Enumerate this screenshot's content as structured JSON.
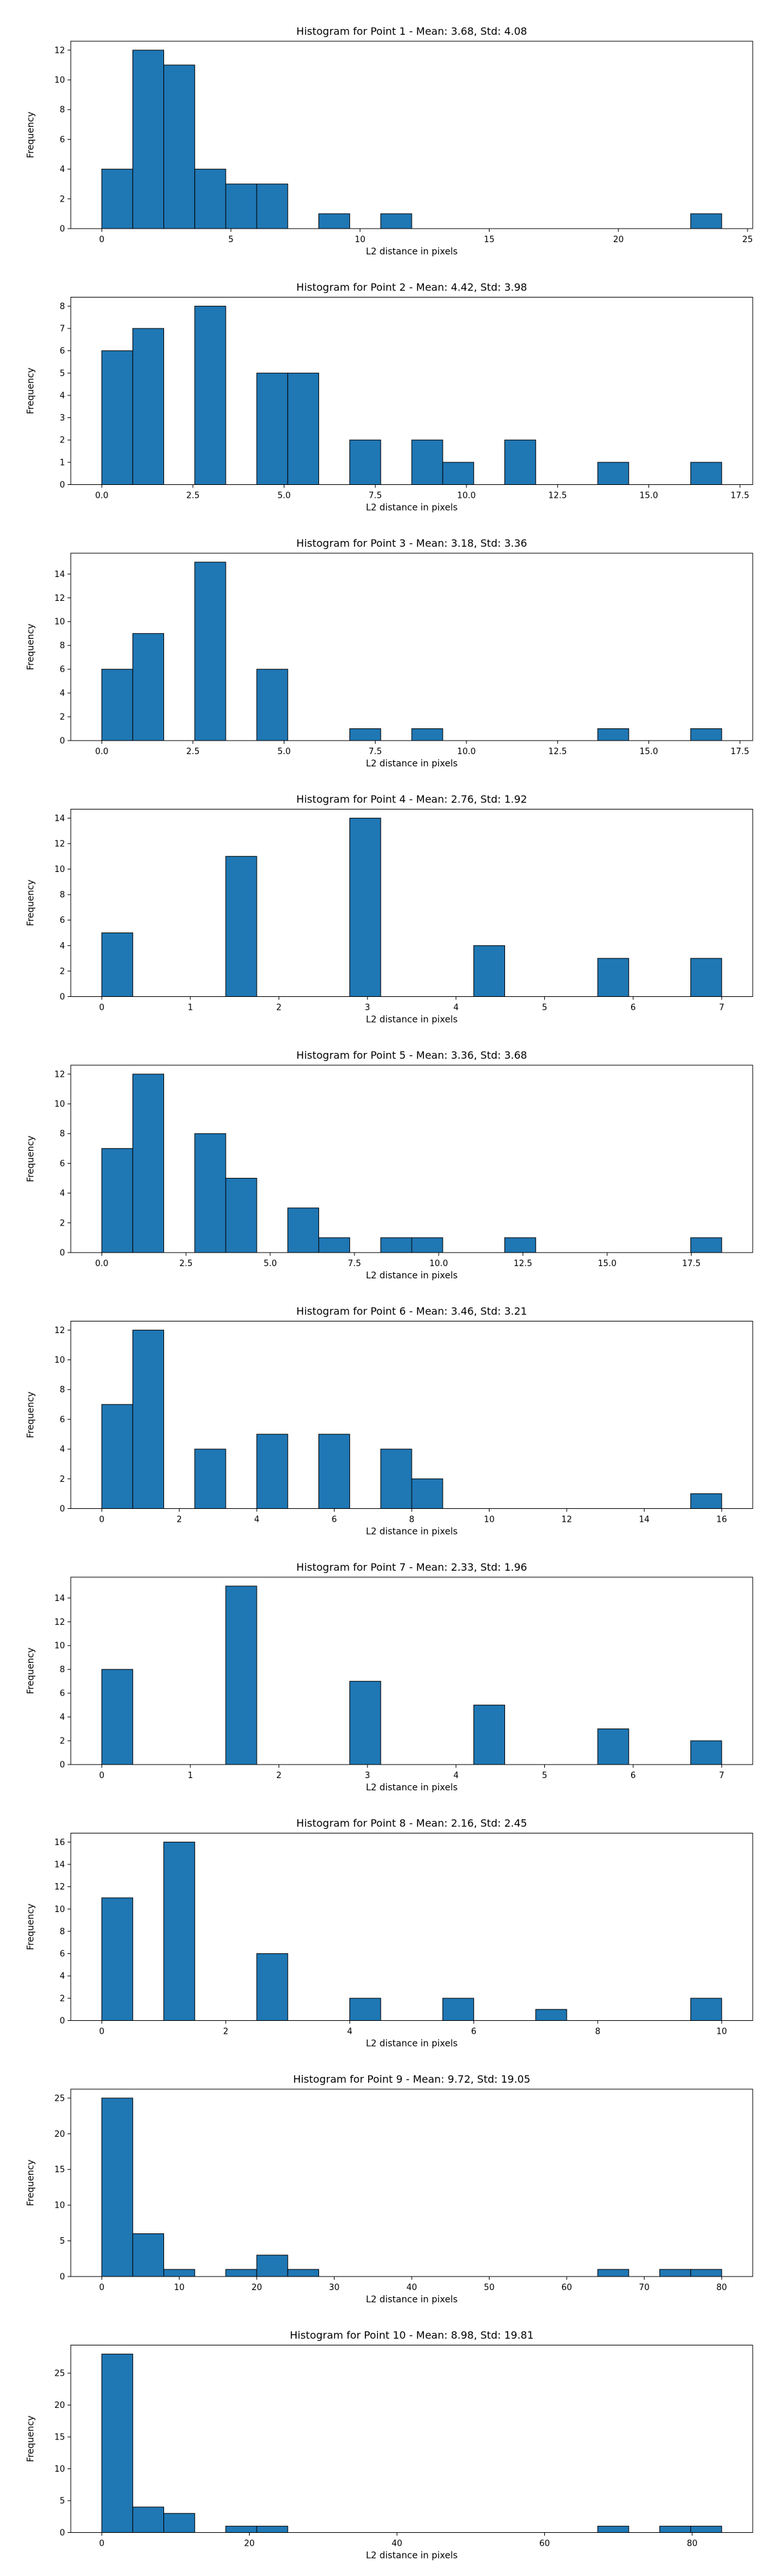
{
  "chart_data": [
    {
      "type": "bar",
      "title": "Histogram for Point 1 - Mean: 3.68, Std: 4.08",
      "xlabel": "L2 distance in pixels",
      "ylabel": "Frequency",
      "xlim": [
        -1.2,
        25.2
      ],
      "ylim": [
        0,
        12.6
      ],
      "xticks": [
        0,
        5,
        10,
        15,
        20,
        25
      ],
      "xtick_labels": [
        "0",
        "5",
        "10",
        "15",
        "20",
        "25"
      ],
      "yticks": [
        0,
        2,
        4,
        6,
        8,
        10,
        12
      ],
      "bins": [
        [
          0,
          1.2,
          4
        ],
        [
          1.2,
          2.4,
          12
        ],
        [
          2.4,
          3.6,
          11
        ],
        [
          3.6,
          4.8,
          4
        ],
        [
          4.8,
          6.0,
          3
        ],
        [
          6.0,
          7.2,
          3
        ],
        [
          8.4,
          9.6,
          1
        ],
        [
          10.8,
          12.0,
          1
        ],
        [
          22.8,
          24.0,
          1
        ]
      ]
    },
    {
      "type": "bar",
      "title": "Histogram for Point 2 - Mean: 4.42, Std: 3.98",
      "xlabel": "L2 distance in pixels",
      "ylabel": "Frequency",
      "xlim": [
        -0.85,
        17.85
      ],
      "ylim": [
        0,
        8.4
      ],
      "xticks": [
        0,
        2.5,
        5,
        7.5,
        10,
        12.5,
        15,
        17.5
      ],
      "xtick_labels": [
        "0.0",
        "2.5",
        "5.0",
        "7.5",
        "10.0",
        "12.5",
        "15.0",
        "17.5"
      ],
      "yticks": [
        0,
        1,
        2,
        3,
        4,
        5,
        6,
        7,
        8
      ],
      "bins": [
        [
          0,
          0.85,
          6
        ],
        [
          0.85,
          1.7,
          7
        ],
        [
          2.55,
          3.4,
          8
        ],
        [
          4.25,
          5.1,
          5
        ],
        [
          5.1,
          5.95,
          5
        ],
        [
          6.8,
          7.65,
          2
        ],
        [
          8.5,
          9.35,
          2
        ],
        [
          9.35,
          10.2,
          1
        ],
        [
          11.05,
          11.9,
          2
        ],
        [
          13.6,
          14.45,
          1
        ],
        [
          16.15,
          17.0,
          1
        ]
      ]
    },
    {
      "type": "bar",
      "title": "Histogram for Point 3 - Mean: 3.18, Std: 3.36",
      "xlabel": "L2 distance in pixels",
      "ylabel": "Frequency",
      "xlim": [
        -0.85,
        17.85
      ],
      "ylim": [
        0,
        15.75
      ],
      "xticks": [
        0,
        2.5,
        5,
        7.5,
        10,
        12.5,
        15,
        17.5
      ],
      "xtick_labels": [
        "0.0",
        "2.5",
        "5.0",
        "7.5",
        "10.0",
        "12.5",
        "15.0",
        "17.5"
      ],
      "yticks": [
        0,
        2,
        4,
        6,
        8,
        10,
        12,
        14
      ],
      "bins": [
        [
          0,
          0.85,
          6
        ],
        [
          0.85,
          1.7,
          9
        ],
        [
          2.55,
          3.4,
          15
        ],
        [
          4.25,
          5.1,
          6
        ],
        [
          6.8,
          7.65,
          1
        ],
        [
          8.5,
          9.35,
          1
        ],
        [
          13.6,
          14.45,
          1
        ],
        [
          16.15,
          17.0,
          1
        ]
      ]
    },
    {
      "type": "bar",
      "title": "Histogram for Point 4 - Mean: 2.76, Std: 1.92",
      "xlabel": "L2 distance in pixels",
      "ylabel": "Frequency",
      "xlim": [
        -0.35,
        7.35
      ],
      "ylim": [
        0,
        14.7
      ],
      "xticks": [
        0,
        1,
        2,
        3,
        4,
        5,
        6,
        7
      ],
      "xtick_labels": [
        "0",
        "1",
        "2",
        "3",
        "4",
        "5",
        "6",
        "7"
      ],
      "yticks": [
        0,
        2,
        4,
        6,
        8,
        10,
        12,
        14
      ],
      "bins": [
        [
          0,
          0.35,
          5
        ],
        [
          1.4,
          1.75,
          11
        ],
        [
          2.8,
          3.15,
          14
        ],
        [
          4.2,
          4.55,
          4
        ],
        [
          5.6,
          5.95,
          3
        ],
        [
          6.65,
          7.0,
          3
        ]
      ]
    },
    {
      "type": "bar",
      "title": "Histogram for Point 5 - Mean: 3.36, Std: 3.68",
      "xlabel": "L2 distance in pixels",
      "ylabel": "Frequency",
      "xlim": [
        -0.92,
        19.32
      ],
      "ylim": [
        0,
        12.6
      ],
      "xticks": [
        0,
        2.5,
        5,
        7.5,
        10,
        12.5,
        15,
        17.5
      ],
      "xtick_labels": [
        "0.0",
        "2.5",
        "5.0",
        "7.5",
        "10.0",
        "12.5",
        "15.0",
        "17.5"
      ],
      "yticks": [
        0,
        2,
        4,
        6,
        8,
        10,
        12
      ],
      "bins": [
        [
          0,
          0.92,
          7
        ],
        [
          0.92,
          1.84,
          12
        ],
        [
          2.76,
          3.68,
          8
        ],
        [
          3.68,
          4.6,
          5
        ],
        [
          5.52,
          6.44,
          3
        ],
        [
          6.44,
          7.36,
          1
        ],
        [
          8.28,
          9.2,
          1
        ],
        [
          9.2,
          10.12,
          1
        ],
        [
          11.96,
          12.88,
          1
        ],
        [
          17.48,
          18.4,
          1
        ]
      ]
    },
    {
      "type": "bar",
      "title": "Histogram for Point 6 - Mean: 3.46, Std: 3.21",
      "xlabel": "L2 distance in pixels",
      "ylabel": "Frequency",
      "xlim": [
        -0.8,
        16.8
      ],
      "ylim": [
        0,
        12.6
      ],
      "xticks": [
        0,
        2,
        4,
        6,
        8,
        10,
        12,
        14,
        16
      ],
      "xtick_labels": [
        "0",
        "2",
        "4",
        "6",
        "8",
        "10",
        "12",
        "14",
        "16"
      ],
      "yticks": [
        0,
        2,
        4,
        6,
        8,
        10,
        12
      ],
      "bins": [
        [
          0,
          0.8,
          7
        ],
        [
          0.8,
          1.6,
          12
        ],
        [
          2.4,
          3.2,
          4
        ],
        [
          4.0,
          4.8,
          5
        ],
        [
          5.6,
          6.4,
          5
        ],
        [
          7.2,
          8.0,
          4
        ],
        [
          8.0,
          8.8,
          2
        ],
        [
          15.2,
          16.0,
          1
        ]
      ]
    },
    {
      "type": "bar",
      "title": "Histogram for Point 7 - Mean: 2.33, Std: 1.96",
      "xlabel": "L2 distance in pixels",
      "ylabel": "Frequency",
      "xlim": [
        -0.35,
        7.35
      ],
      "ylim": [
        0,
        15.75
      ],
      "xticks": [
        0,
        1,
        2,
        3,
        4,
        5,
        6,
        7
      ],
      "xtick_labels": [
        "0",
        "1",
        "2",
        "3",
        "4",
        "5",
        "6",
        "7"
      ],
      "yticks": [
        0,
        2,
        4,
        6,
        8,
        10,
        12,
        14
      ],
      "bins": [
        [
          0,
          0.35,
          8
        ],
        [
          1.4,
          1.75,
          15
        ],
        [
          2.8,
          3.15,
          7
        ],
        [
          4.2,
          4.55,
          5
        ],
        [
          5.6,
          5.95,
          3
        ],
        [
          6.65,
          7.0,
          2
        ]
      ]
    },
    {
      "type": "bar",
      "title": "Histogram for Point 8 - Mean: 2.16, Std: 2.45",
      "xlabel": "L2 distance in pixels",
      "ylabel": "Frequency",
      "xlim": [
        -0.5,
        10.5
      ],
      "ylim": [
        0,
        16.8
      ],
      "xticks": [
        0,
        2,
        4,
        6,
        8,
        10
      ],
      "xtick_labels": [
        "0",
        "2",
        "4",
        "6",
        "8",
        "10"
      ],
      "yticks": [
        0,
        2,
        4,
        6,
        8,
        10,
        12,
        14,
        16
      ],
      "bins": [
        [
          0,
          0.5,
          11
        ],
        [
          1.0,
          1.5,
          16
        ],
        [
          2.5,
          3.0,
          6
        ],
        [
          4.0,
          4.5,
          2
        ],
        [
          5.5,
          6.0,
          2
        ],
        [
          7.0,
          7.5,
          1
        ],
        [
          9.5,
          10.0,
          2
        ]
      ]
    },
    {
      "type": "bar",
      "title": "Histogram for Point 9 - Mean: 9.72, Std: 19.05",
      "xlabel": "L2 distance in pixels",
      "ylabel": "Frequency",
      "xlim": [
        -4.0,
        84.0
      ],
      "ylim": [
        0,
        26.25
      ],
      "xticks": [
        0,
        10,
        20,
        30,
        40,
        50,
        60,
        70,
        80
      ],
      "xtick_labels": [
        "0",
        "10",
        "20",
        "30",
        "40",
        "50",
        "60",
        "70",
        "80"
      ],
      "yticks": [
        0,
        5,
        10,
        15,
        20,
        25
      ],
      "bins": [
        [
          0,
          4,
          25
        ],
        [
          4,
          8,
          6
        ],
        [
          8,
          12,
          1
        ],
        [
          16,
          20,
          1
        ],
        [
          20,
          24,
          3
        ],
        [
          24,
          28,
          1
        ],
        [
          64,
          68,
          1
        ],
        [
          72,
          76,
          1
        ],
        [
          76,
          80,
          1
        ]
      ]
    },
    {
      "type": "bar",
      "title": "Histogram for Point 10 - Mean: 8.98, Std: 19.81",
      "xlabel": "L2 distance in pixels",
      "ylabel": "Frequency",
      "xlim": [
        -4.2,
        88.2
      ],
      "ylim": [
        0,
        29.4
      ],
      "xticks": [
        0,
        20,
        40,
        60,
        80
      ],
      "xtick_labels": [
        "0",
        "20",
        "40",
        "60",
        "80"
      ],
      "yticks": [
        0,
        5,
        10,
        15,
        20,
        25
      ],
      "bins": [
        [
          0,
          4.2,
          28
        ],
        [
          4.2,
          8.4,
          4
        ],
        [
          8.4,
          12.6,
          3
        ],
        [
          16.8,
          21.0,
          1
        ],
        [
          21.0,
          25.2,
          1
        ],
        [
          67.2,
          71.4,
          1
        ],
        [
          75.6,
          79.8,
          1
        ],
        [
          79.8,
          84.0,
          1
        ]
      ]
    }
  ],
  "colors": {
    "bar_fill": "#1f77b4",
    "bar_edge": "#000000"
  }
}
